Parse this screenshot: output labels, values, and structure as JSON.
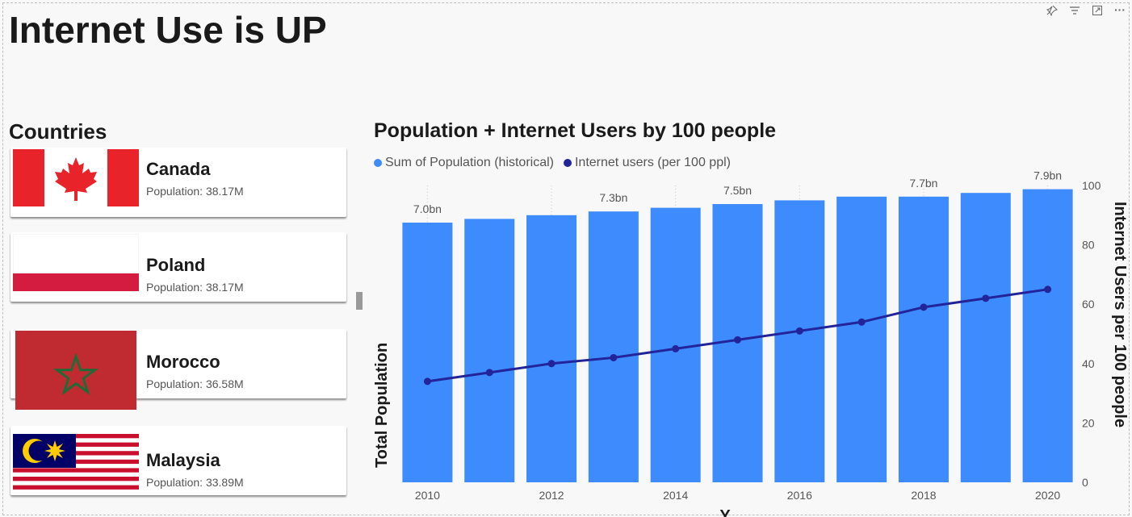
{
  "page": {
    "title": "Internet Use is UP"
  },
  "countries": {
    "title": "Countries",
    "items": [
      {
        "name": "Canada",
        "population": "Population: 38.17M"
      },
      {
        "name": "Poland",
        "population": "Population: 38.17M"
      },
      {
        "name": "Morocco",
        "population": "Population: 36.58M"
      },
      {
        "name": "Malaysia",
        "population": "Population: 33.89M"
      }
    ]
  },
  "toolbar": {
    "icons": [
      "pin-icon",
      "filter-icon",
      "focus-mode-icon",
      "more-options-icon"
    ],
    "more": "···"
  },
  "colors": {
    "bars": "#3d8bfd",
    "line": "#23239a"
  },
  "chart_data": {
    "type": "bar+line",
    "title": "Population + Internet Users by 100 people",
    "xlabel": "Y",
    "ylabel_left": "Total Population",
    "ylabel_right": "Internet Users per 100 people",
    "legend": [
      "Sum of Population (historical)",
      "Internet users (per 100 ppl)"
    ],
    "x": [
      2010,
      2011,
      2012,
      2013,
      2014,
      2015,
      2016,
      2017,
      2018,
      2019,
      2020
    ],
    "x_tick_labels": [
      "2010",
      "2012",
      "2014",
      "2016",
      "2018",
      "2020"
    ],
    "series": [
      {
        "name": "Sum of Population (historical)",
        "type": "bar",
        "axis": "left",
        "values": [
          7.0,
          7.1,
          7.2,
          7.3,
          7.4,
          7.5,
          7.6,
          7.7,
          7.7,
          7.8,
          7.9
        ]
      },
      {
        "name": "Internet users (per 100 ppl)",
        "type": "line",
        "axis": "right",
        "values": [
          34,
          37,
          40,
          42,
          45,
          48,
          51,
          54,
          59,
          62,
          65
        ]
      }
    ],
    "data_labels": [
      {
        "index": 0,
        "text": "7.0bn"
      },
      {
        "index": 3,
        "text": "7.3bn"
      },
      {
        "index": 5,
        "text": "7.5bn"
      },
      {
        "index": 8,
        "text": "7.7bn"
      },
      {
        "index": 10,
        "text": "7.9bn"
      }
    ],
    "y_right_ticks": [
      "0",
      "20",
      "40",
      "60",
      "80",
      "100"
    ],
    "y_right_range": [
      0,
      100
    ],
    "y_left_range": [
      0,
      8.0
    ]
  }
}
